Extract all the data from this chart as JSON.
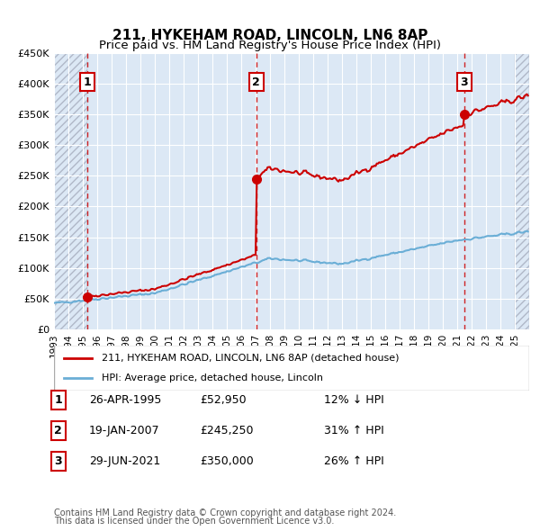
{
  "title": "211, HYKEHAM ROAD, LINCOLN, LN6 8AP",
  "subtitle": "Price paid vs. HM Land Registry's House Price Index (HPI)",
  "sales": [
    {
      "date": "1995-04-26",
      "price": 52950,
      "label": "1"
    },
    {
      "date": "2007-01-19",
      "price": 245250,
      "label": "2"
    },
    {
      "date": "2021-06-29",
      "price": 350000,
      "label": "3"
    }
  ],
  "table_rows": [
    {
      "num": "1",
      "date": "26-APR-1995",
      "price": "£52,950",
      "hpi": "12% ↓ HPI"
    },
    {
      "num": "2",
      "date": "19-JAN-2007",
      "price": "£245,250",
      "hpi": "31% ↑ HPI"
    },
    {
      "num": "3",
      "date": "29-JUN-2021",
      "price": "£350,000",
      "hpi": "26% ↑ HPI"
    }
  ],
  "legend1": "211, HYKEHAM ROAD, LINCOLN, LN6 8AP (detached house)",
  "legend2": "HPI: Average price, detached house, Lincoln",
  "footer1": "Contains HM Land Registry data © Crown copyright and database right 2024.",
  "footer2": "This data is licensed under the Open Government Licence v3.0.",
  "hpi_color": "#6aaed6",
  "price_color": "#cc0000",
  "vline_color": "#cc0000",
  "label_box_color": "#cc0000",
  "bg_hatch_color": "#d0d8e8",
  "grid_color": "#c0c8d8",
  "ylim": [
    0,
    450000
  ],
  "yticks": [
    0,
    50000,
    100000,
    150000,
    200000,
    250000,
    300000,
    350000,
    400000,
    450000
  ],
  "xlim_start": 1993.0,
  "xlim_end": 2026.0,
  "xticks": [
    1993,
    1994,
    1995,
    1996,
    1997,
    1998,
    1999,
    2000,
    2001,
    2002,
    2003,
    2004,
    2005,
    2006,
    2007,
    2008,
    2009,
    2010,
    2011,
    2012,
    2013,
    2014,
    2015,
    2016,
    2017,
    2018,
    2019,
    2020,
    2021,
    2022,
    2023,
    2024,
    2025
  ]
}
